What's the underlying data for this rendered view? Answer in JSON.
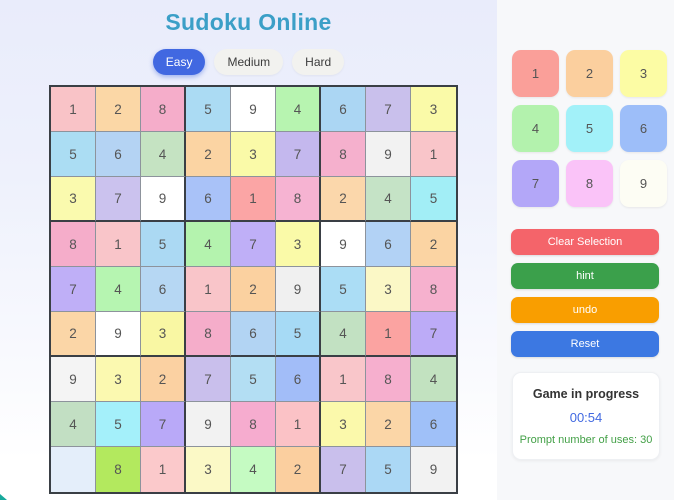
{
  "app": {
    "title": "Sudoku Online"
  },
  "colors": {
    "title_text": "#3b9fc7",
    "difficulty_active_bg": "#4168e1",
    "timer_text": "#4169e1",
    "prompts_text": "#43a047",
    "corner_mark": "#17a99c",
    "grid_line_minor": "#8d939c",
    "grid_line_major": "#3a3f45"
  },
  "difficulty": {
    "options": [
      {
        "label": "Easy",
        "active": true
      },
      {
        "label": "Medium",
        "active": false
      },
      {
        "label": "Hard",
        "active": false
      }
    ]
  },
  "board": {
    "rows": [
      [
        {
          "v": "1",
          "bg": "#f9c3c7"
        },
        {
          "v": "2",
          "bg": "#fbd7a6"
        },
        {
          "v": "8",
          "bg": "#f5adca"
        },
        {
          "v": "5",
          "bg": "#abdbf3"
        },
        {
          "v": "9",
          "bg": "#ffffff"
        },
        {
          "v": "4",
          "bg": "#b7f4b0"
        },
        {
          "v": "6",
          "bg": "#abd6f3"
        },
        {
          "v": "7",
          "bg": "#c9c0ec"
        },
        {
          "v": "3",
          "bg": "#fafaa8"
        }
      ],
      [
        {
          "v": "5",
          "bg": "#abddf3"
        },
        {
          "v": "6",
          "bg": "#b4d3f3"
        },
        {
          "v": "4",
          "bg": "#c5e3c2"
        },
        {
          "v": "2",
          "bg": "#fbd4a3"
        },
        {
          "v": "3",
          "bg": "#fafaa8"
        },
        {
          "v": "7",
          "bg": "#c4b8ee"
        },
        {
          "v": "8",
          "bg": "#f5b0cd"
        },
        {
          "v": "9",
          "bg": "#f2f2f2"
        },
        {
          "v": "1",
          "bg": "#f9c5c9"
        }
      ],
      [
        {
          "v": "3",
          "bg": "#fafaae"
        },
        {
          "v": "7",
          "bg": "#cbc2ee"
        },
        {
          "v": "9",
          "bg": "#ffffff"
        },
        {
          "v": "6",
          "bg": "#a9c2f8"
        },
        {
          "v": "1",
          "bg": "#fba5a5"
        },
        {
          "v": "8",
          "bg": "#f6b3d2"
        },
        {
          "v": "2",
          "bg": "#fbd7ab"
        },
        {
          "v": "4",
          "bg": "#c5e3c6"
        },
        {
          "v": "5",
          "bg": "#a2eef6"
        }
      ],
      [
        {
          "v": "8",
          "bg": "#f5adca"
        },
        {
          "v": "1",
          "bg": "#f9c5c9"
        },
        {
          "v": "5",
          "bg": "#abd9f3"
        },
        {
          "v": "4",
          "bg": "#b4f3ae"
        },
        {
          "v": "7",
          "bg": "#bfaff7"
        },
        {
          "v": "3",
          "bg": "#fafaa8"
        },
        {
          "v": "9",
          "bg": "#ffffff"
        },
        {
          "v": "6",
          "bg": "#b2d2f5"
        },
        {
          "v": "2",
          "bg": "#fbd4a3"
        }
      ],
      [
        {
          "v": "7",
          "bg": "#bfaff7"
        },
        {
          "v": "4",
          "bg": "#b6f5b1"
        },
        {
          "v": "6",
          "bg": "#b6d7f3"
        },
        {
          "v": "1",
          "bg": "#f9c5c9"
        },
        {
          "v": "2",
          "bg": "#fbd1a0"
        },
        {
          "v": "9",
          "bg": "#f0f0f0"
        },
        {
          "v": "5",
          "bg": "#abddf5"
        },
        {
          "v": "3",
          "bg": "#fbf8c6"
        },
        {
          "v": "8",
          "bg": "#f6b1ce"
        }
      ],
      [
        {
          "v": "2",
          "bg": "#fbd6a7"
        },
        {
          "v": "9",
          "bg": "#ffffff"
        },
        {
          "v": "3",
          "bg": "#f9f7a3"
        },
        {
          "v": "8",
          "bg": "#f5adca"
        },
        {
          "v": "6",
          "bg": "#b2d4f3"
        },
        {
          "v": "5",
          "bg": "#a6daf5"
        },
        {
          "v": "4",
          "bg": "#c2e1c2"
        },
        {
          "v": "1",
          "bg": "#fba3a1"
        },
        {
          "v": "7",
          "bg": "#bcabf7"
        }
      ],
      [
        {
          "v": "9",
          "bg": "#f4f4f4"
        },
        {
          "v": "3",
          "bg": "#fbf9b0"
        },
        {
          "v": "2",
          "bg": "#fbd1a2"
        },
        {
          "v": "7",
          "bg": "#c9bfec"
        },
        {
          "v": "5",
          "bg": "#b3def3"
        },
        {
          "v": "6",
          "bg": "#a2bdf8"
        },
        {
          "v": "1",
          "bg": "#f9c6ca"
        },
        {
          "v": "8",
          "bg": "#f6afce"
        },
        {
          "v": "4",
          "bg": "#c2e2c0"
        }
      ],
      [
        {
          "v": "4",
          "bg": "#c2dfc3"
        },
        {
          "v": "5",
          "bg": "#a4f0fa"
        },
        {
          "v": "7",
          "bg": "#b9a9f8"
        },
        {
          "v": "9",
          "bg": "#f2f2f2"
        },
        {
          "v": "8",
          "bg": "#f6accf"
        },
        {
          "v": "1",
          "bg": "#fbc2c6"
        },
        {
          "v": "3",
          "bg": "#fbf9ab"
        },
        {
          "v": "2",
          "bg": "#fbd6a7"
        },
        {
          "v": "6",
          "bg": "#9fc0f8"
        }
      ],
      [
        {
          "v": "",
          "bg": "#e4eefa"
        },
        {
          "v": "8",
          "bg": "#b3e95e"
        },
        {
          "v": "1",
          "bg": "#fbc9cb"
        },
        {
          "v": "3",
          "bg": "#fbf9c6"
        },
        {
          "v": "4",
          "bg": "#c5fbc2"
        },
        {
          "v": "2",
          "bg": "#fbcf9f"
        },
        {
          "v": "7",
          "bg": "#c9bfec"
        },
        {
          "v": "5",
          "bg": "#abd8f5"
        },
        {
          "v": "9",
          "bg": "#f2f2f2"
        }
      ]
    ]
  },
  "numpad": {
    "keys": [
      {
        "label": "1",
        "color": "#fa9f99"
      },
      {
        "label": "2",
        "color": "#fbcf9e"
      },
      {
        "label": "3",
        "color": "#fcfca4"
      },
      {
        "label": "4",
        "color": "#b3f2ad"
      },
      {
        "label": "5",
        "color": "#a2f1f9"
      },
      {
        "label": "6",
        "color": "#9dbef9"
      },
      {
        "label": "7",
        "color": "#b3a7f8"
      },
      {
        "label": "8",
        "color": "#fac3f8"
      },
      {
        "label": "9",
        "color": "#fdfdf4"
      }
    ]
  },
  "actions": [
    {
      "id": "clear-selection",
      "label": "Clear Selection",
      "color": "#f4646a"
    },
    {
      "id": "hint",
      "label": "hint",
      "color": "#3ba04b"
    },
    {
      "id": "undo",
      "label": "undo",
      "color": "#f99e00"
    },
    {
      "id": "reset",
      "label": "Reset",
      "color": "#3c78e2"
    }
  ],
  "status": {
    "title": "Game in progress",
    "timer": "00:54",
    "prompts": "Prompt number of uses: 30"
  }
}
